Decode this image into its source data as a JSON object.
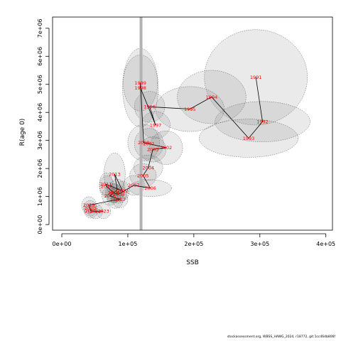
{
  "chart_data": {
    "type": "scatter",
    "title": "",
    "xlabel": "SSB",
    "ylabel": "R(age 0)",
    "xlim": [
      -14000,
      410000
    ],
    "ylim": [
      -200000,
      7400000
    ],
    "x_ticks": [
      0,
      100000,
      200000,
      300000,
      400000
    ],
    "x_tick_labels": [
      "0e+00",
      "1e+05",
      "2e+05",
      "3e+05",
      "4e+05"
    ],
    "y_ticks": [
      0,
      1000000,
      2000000,
      3000000,
      4000000,
      5000000,
      6000000,
      7000000
    ],
    "y_tick_labels": [
      "0e+00",
      "1e+06",
      "2e+06",
      "3e+06",
      "4e+06",
      "5e+06",
      "6e+06",
      "7e+06"
    ],
    "reference_line": {
      "x": 120000,
      "color": "#b3b3b3"
    },
    "grid": false,
    "legend": "none",
    "colors": {
      "label": "#ff0000",
      "path": "#000000",
      "ellipse_fill": "#7f7f7f",
      "ellipse_stroke": "#555555"
    },
    "points": [
      {
        "year": "1991",
        "x": 294000,
        "y": 5250000,
        "sx": 78000,
        "sy": 1700000
      },
      {
        "year": "1992",
        "x": 304000,
        "y": 3670000,
        "sx": 72000,
        "sy": 720000
      },
      {
        "year": "1993",
        "x": 283000,
        "y": 3080000,
        "sx": 75000,
        "sy": 680000
      },
      {
        "year": "1994",
        "x": 227000,
        "y": 4550000,
        "sx": 52000,
        "sy": 950000
      },
      {
        "year": "1995",
        "x": 194000,
        "y": 4120000,
        "sx": 52000,
        "sy": 800000
      },
      {
        "year": "1996",
        "x": 133000,
        "y": 4200000,
        "sx": 23000,
        "sy": 550000
      },
      {
        "year": "1997",
        "x": 142000,
        "y": 3550000,
        "sx": 22000,
        "sy": 480000
      },
      {
        "year": "1998",
        "x": 119000,
        "y": 4880000,
        "sx": 27000,
        "sy": 1400000
      },
      {
        "year": "1999",
        "x": 119000,
        "y": 5050000,
        "sx": 26000,
        "sy": 1000000
      },
      {
        "year": "2000",
        "x": 124000,
        "y": 2920000,
        "sx": 24000,
        "sy": 650000
      },
      {
        "year": "2001",
        "x": 132000,
        "y": 2880000,
        "sx": 22000,
        "sy": 550000
      },
      {
        "year": "2002",
        "x": 158000,
        "y": 2740000,
        "sx": 25000,
        "sy": 600000
      },
      {
        "year": "2003",
        "x": 138000,
        "y": 2680000,
        "sx": 20000,
        "sy": 450000
      },
      {
        "year": "2004",
        "x": 131000,
        "y": 2030000,
        "sx": 22000,
        "sy": 450000
      },
      {
        "year": "2005",
        "x": 123000,
        "y": 1750000,
        "sx": 20000,
        "sy": 420000
      },
      {
        "year": "2006",
        "x": 134000,
        "y": 1300000,
        "sx": 32000,
        "sy": 300000
      },
      {
        "year": "2007",
        "x": 109000,
        "y": 1400000,
        "sx": 16000,
        "sy": 350000
      },
      {
        "year": "2008",
        "x": 86000,
        "y": 1080000,
        "sx": 12000,
        "sy": 320000
      },
      {
        "year": "2009",
        "x": 79000,
        "y": 1120000,
        "sx": 11000,
        "sy": 320000
      },
      {
        "year": "2010",
        "x": 68000,
        "y": 1360000,
        "sx": 11000,
        "sy": 380000
      },
      {
        "year": "2011",
        "x": 67000,
        "y": 1440000,
        "sx": 10000,
        "sy": 400000
      },
      {
        "year": "2012",
        "x": 92000,
        "y": 1200000,
        "sx": 10000,
        "sy": 350000
      },
      {
        "year": "2013",
        "x": 80000,
        "y": 1800000,
        "sx": 16000,
        "sy": 750000
      },
      {
        "year": "2014",
        "x": 84000,
        "y": 1240000,
        "sx": 12000,
        "sy": 380000
      },
      {
        "year": "2015",
        "x": 78000,
        "y": 1120000,
        "sx": 12000,
        "sy": 350000
      },
      {
        "year": "2016",
        "x": 73000,
        "y": 1020000,
        "sx": 12000,
        "sy": 330000
      },
      {
        "year": "2017",
        "x": 88000,
        "y": 900000,
        "sx": 12000,
        "sy": 300000
      },
      {
        "year": "2018",
        "x": 81000,
        "y": 880000,
        "sx": 12000,
        "sy": 300000
      },
      {
        "year": "2019",
        "x": 41000,
        "y": 690000,
        "sx": 11000,
        "sy": 300000
      },
      {
        "year": "2020",
        "x": 43000,
        "y": 580000,
        "sx": 10000,
        "sy": 280000
      },
      {
        "year": "2021",
        "x": 44000,
        "y": 490000,
        "sx": 10000,
        "sy": 260000
      },
      {
        "year": "2022",
        "x": 51000,
        "y": 470000,
        "sx": 11000,
        "sy": 260000
      },
      {
        "year": "2023",
        "x": 63000,
        "y": 480000,
        "sx": 11000,
        "sy": 270000
      }
    ]
  },
  "footer": "stockassessment.org, WBSS_HAWG_2024, r18772, git:1cc464b806f"
}
